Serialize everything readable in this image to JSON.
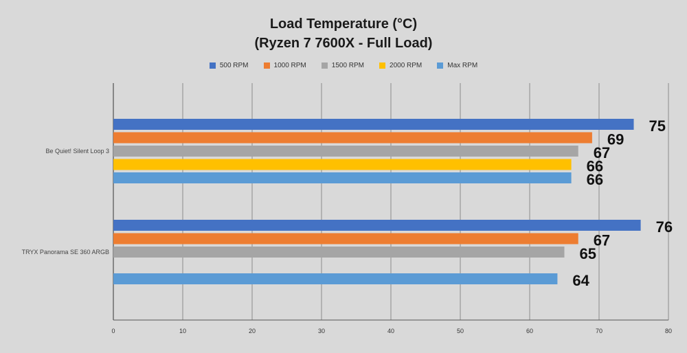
{
  "chart_data": {
    "type": "bar",
    "orientation": "horizontal",
    "title": "Load Temperature (°C)",
    "subtitle": "(Ryzen 7 7600X - Full Load)",
    "xlim": [
      0,
      80
    ],
    "xticks": [
      0,
      10,
      20,
      30,
      40,
      50,
      60,
      70,
      80
    ],
    "grid": true,
    "legend_position": "top",
    "categories": [
      "Be Quiet! Silent Loop 3",
      "TRYX Panorama SE 360 ARGB"
    ],
    "series": [
      {
        "name": "500 RPM",
        "color": "#4472c4",
        "values": [
          75,
          76
        ]
      },
      {
        "name": "1000 RPM",
        "color": "#ed7d31",
        "values": [
          69,
          67
        ]
      },
      {
        "name": "1500 RPM",
        "color": "#a5a5a5",
        "values": [
          67,
          65
        ]
      },
      {
        "name": "2000 RPM",
        "color": "#ffc000",
        "values": [
          66,
          null
        ]
      },
      {
        "name": "Max RPM",
        "color": "#5b9bd5",
        "values": [
          66,
          64
        ]
      }
    ]
  }
}
